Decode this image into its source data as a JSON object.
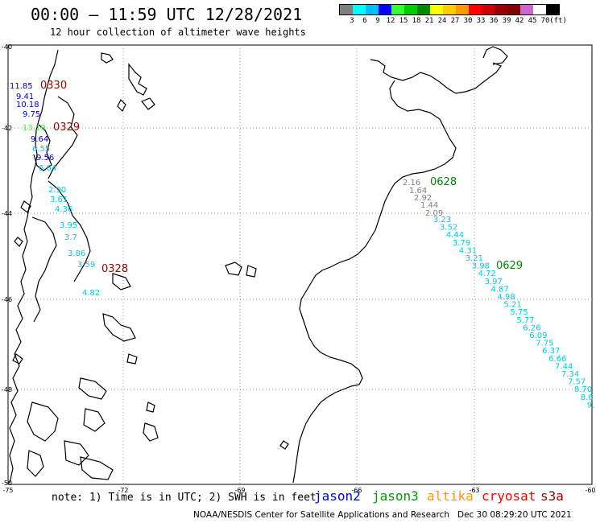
{
  "title": "00:00 – 11:59 UTC 12/28/2021",
  "subtitle": "12 hour collection of altimeter wave heights",
  "scale": {
    "colors": [
      "#7f7f7f",
      "#00ffff",
      "#00bfff",
      "#0000ff",
      "#33ff33",
      "#00cc00",
      "#008800",
      "#ffff00",
      "#ffcc00",
      "#ff9900",
      "#ff0000",
      "#cc0000",
      "#990000",
      "#800000",
      "#cc66cc",
      "#ffffff",
      "#000000"
    ],
    "labels": [
      "3",
      "6",
      "9",
      "12",
      "15",
      "18",
      "21",
      "24",
      "27",
      "30",
      "33",
      "36",
      "39",
      "42",
      "45",
      "70",
      "(ft)"
    ]
  },
  "map": {
    "lat_labels": [
      "-40",
      "-42",
      "-44",
      "-46",
      "-48",
      "-50"
    ],
    "lon_labels": [
      "-75",
      "-72",
      "-69",
      "-66",
      "-63",
      "-60"
    ],
    "passes": [
      {
        "time": "0330",
        "color": "#990000"
      },
      {
        "time": "0329",
        "color": "#990000"
      },
      {
        "time": "0328",
        "color": "#990000"
      },
      {
        "time": "0628",
        "color": "#008800"
      },
      {
        "time": "0629",
        "color": "#008800"
      }
    ],
    "track_west": [
      {
        "v": "11.85",
        "c": "#0000cc"
      },
      {
        "v": "9.41",
        "c": "#0000cc"
      },
      {
        "v": "10.18",
        "c": "#0000cc"
      },
      {
        "v": "9.75",
        "c": "#0000cc"
      },
      {
        "v": "13.19",
        "c": "#33ff33"
      },
      {
        "v": "9.64",
        "c": "#0000cc"
      },
      {
        "v": "6.55",
        "c": "#00bfff"
      },
      {
        "v": "9.56",
        "c": "#0000cc"
      },
      {
        "v": "6.04",
        "c": "#00bfff"
      },
      {
        "v": "2.90",
        "c": "#00ccdd"
      },
      {
        "v": "3.61",
        "c": "#00ccdd"
      },
      {
        "v": "4.36",
        "c": "#00ccdd"
      },
      {
        "v": "3.95",
        "c": "#00ccdd"
      },
      {
        "v": "3.7",
        "c": "#00ccdd"
      },
      {
        "v": "3.86",
        "c": "#00ccdd"
      },
      {
        "v": "3.59",
        "c": "#00ccdd"
      },
      {
        "v": "4.82",
        "c": "#00ccdd"
      }
    ],
    "track_east": [
      {
        "v": "2.16",
        "c": "#7f7f7f"
      },
      {
        "v": "1.64",
        "c": "#7f7f7f"
      },
      {
        "v": "2.92",
        "c": "#7f7f7f"
      },
      {
        "v": "1.44",
        "c": "#7f7f7f"
      },
      {
        "v": "2.09",
        "c": "#7f7f7f"
      },
      {
        "v": "3.23",
        "c": "#00ccdd"
      },
      {
        "v": "3.52",
        "c": "#00ccdd"
      },
      {
        "v": "4.44",
        "c": "#00ccdd"
      },
      {
        "v": "3.79",
        "c": "#00ccdd"
      },
      {
        "v": "4.31",
        "c": "#00ccdd"
      },
      {
        "v": "3.21",
        "c": "#00ccdd"
      },
      {
        "v": "3.98",
        "c": "#00ccdd"
      },
      {
        "v": "4.72",
        "c": "#00ccdd"
      },
      {
        "v": "3.97",
        "c": "#00ccdd"
      },
      {
        "v": "4.87",
        "c": "#00ccdd"
      },
      {
        "v": "4.98",
        "c": "#00ccdd"
      },
      {
        "v": "5.21",
        "c": "#00ccdd"
      },
      {
        "v": "5.75",
        "c": "#00ccdd"
      },
      {
        "v": "5.77",
        "c": "#00ccdd"
      },
      {
        "v": "6.26",
        "c": "#00ccdd"
      },
      {
        "v": "6.09",
        "c": "#00ccdd"
      },
      {
        "v": "7.75",
        "c": "#00ccdd"
      },
      {
        "v": "6.37",
        "c": "#00ccdd"
      },
      {
        "v": "6.66",
        "c": "#00ccdd"
      },
      {
        "v": "7.44",
        "c": "#00ccdd"
      },
      {
        "v": "7.34",
        "c": "#00ccdd"
      },
      {
        "v": "7.57",
        "c": "#00ccdd"
      },
      {
        "v": "8.70",
        "c": "#00ccdd"
      },
      {
        "v": "8.6",
        "c": "#00ccdd"
      },
      {
        "v": "9.",
        "c": "#00ccdd"
      }
    ]
  },
  "footer": {
    "note": "note: 1) Time is in UTC; 2) SWH is in feet",
    "satellites": [
      {
        "name": "jason2",
        "color": "#0000ff"
      },
      {
        "name": "jason3",
        "color": "#009900"
      },
      {
        "name": "altika",
        "color": "#ff9900"
      },
      {
        "name": "cryosat",
        "color": "#ff0000"
      },
      {
        "name": "s3a",
        "color": "#990000"
      }
    ],
    "credit": "NOAA/NESDIS Center for Satellite Applications and Research",
    "generated": "Dec 30 08:29:20 UTC 2021"
  }
}
